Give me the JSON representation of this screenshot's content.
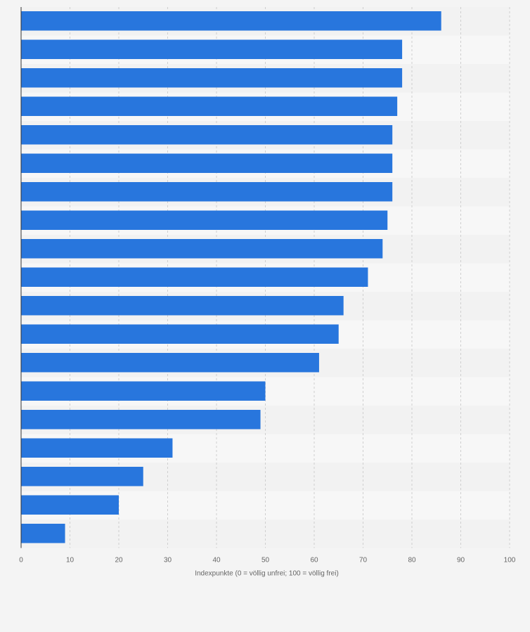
{
  "chart_data": {
    "type": "bar",
    "orientation": "horizontal",
    "values": [
      86,
      78,
      78,
      77,
      76,
      76,
      76,
      75,
      74,
      71,
      66,
      65,
      61,
      50,
      49,
      31,
      25,
      20,
      9
    ],
    "xlim": [
      0,
      100
    ],
    "x_ticks": [
      0,
      10,
      20,
      30,
      40,
      50,
      60,
      70,
      80,
      90,
      100
    ],
    "xlabel": "Indexpunkte (0 = völlig unfrei; 100 = völlig frei)",
    "title": "",
    "ylabel": "",
    "grid": true,
    "legend": "none"
  },
  "colors": {
    "bar": "#2876dd",
    "background": "#f4f4f4",
    "band_light": "#f7f7f7",
    "band_dark": "#f2f2f2",
    "grid": "#cfcfcf",
    "axis": "#333333",
    "text": "#666666"
  }
}
